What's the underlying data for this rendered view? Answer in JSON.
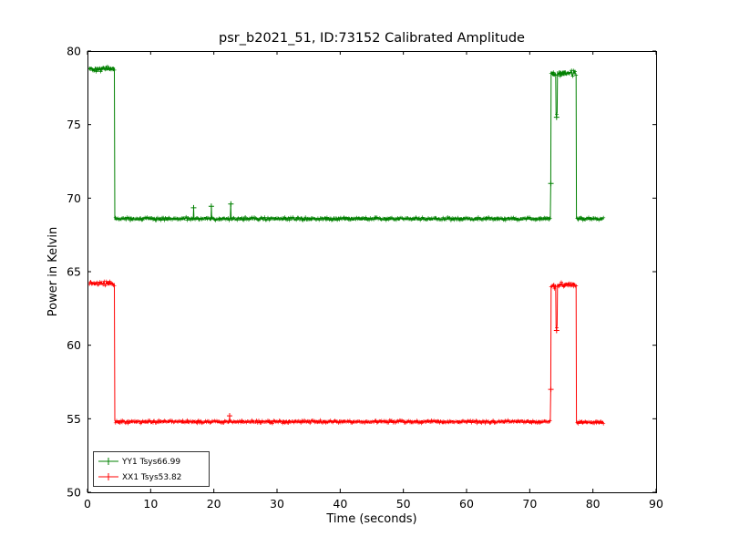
{
  "figure": {
    "title": "psr_b2021_51, ID:73152 Calibrated Amplitude",
    "xlabel": "Time (seconds)",
    "ylabel": "Power in Kelvin"
  },
  "chart_data": {
    "type": "line",
    "title": "psr_b2021_51, ID:73152 Calibrated Amplitude",
    "xlabel": "Time (seconds)",
    "ylabel": "Power in Kelvin",
    "xlim": [
      0,
      90
    ],
    "ylim": [
      50,
      80
    ],
    "x_ticks": [
      0,
      10,
      20,
      30,
      40,
      50,
      60,
      70,
      80,
      90
    ],
    "y_ticks": [
      50,
      55,
      60,
      65,
      70,
      75,
      80
    ],
    "x_tick_labels": [
      "0",
      "10",
      "20",
      "30",
      "40",
      "50",
      "60",
      "70",
      "80",
      "90"
    ],
    "y_tick_labels": [
      "50",
      "55",
      "60",
      "65",
      "70",
      "75",
      "80"
    ],
    "grid": false,
    "legend_position": "lower left",
    "legend": [
      "YY1 Tsys66.99",
      "XX1 Tsys53.82"
    ],
    "series": [
      {
        "name": "YY1 Tsys66.99",
        "color": "#008000",
        "marker": "+",
        "tsys": 66.99,
        "segments": [
          {
            "t0": 0.3,
            "t1": 4.3,
            "level": 78.8,
            "noise": 0.22
          },
          {
            "t0": 4.3,
            "t1": 73.3,
            "level": 68.6,
            "noise": 0.13
          },
          {
            "t0": 73.3,
            "t1": 74.15,
            "level": 78.4,
            "noise": 0.28
          },
          {
            "t0": 74.15,
            "t1": 74.4,
            "level": 75.8,
            "noise": 0.25
          },
          {
            "t0": 74.4,
            "t1": 77.4,
            "level": 78.5,
            "noise": 0.25
          },
          {
            "t0": 77.4,
            "t1": 81.7,
            "level": 68.6,
            "noise": 0.13
          }
        ],
        "outliers": [
          {
            "t": 16.8,
            "v": 69.35
          },
          {
            "t": 19.6,
            "v": 69.45
          },
          {
            "t": 22.7,
            "v": 69.6
          },
          {
            "t": 73.35,
            "v": 71.0
          },
          {
            "t": 74.25,
            "v": 75.5
          }
        ]
      },
      {
        "name": "XX1 Tsys53.82",
        "color": "#ff0000",
        "marker": "+",
        "tsys": 53.82,
        "segments": [
          {
            "t0": 0.3,
            "t1": 4.3,
            "level": 64.2,
            "noise": 0.18
          },
          {
            "t0": 4.3,
            "t1": 73.3,
            "level": 54.8,
            "noise": 0.12
          },
          {
            "t0": 73.3,
            "t1": 74.15,
            "level": 64.05,
            "noise": 0.22
          },
          {
            "t0": 74.15,
            "t1": 74.4,
            "level": 61.3,
            "noise": 0.22
          },
          {
            "t0": 74.4,
            "t1": 77.4,
            "level": 64.1,
            "noise": 0.22
          },
          {
            "t0": 77.4,
            "t1": 81.7,
            "level": 54.75,
            "noise": 0.12
          }
        ],
        "outliers": [
          {
            "t": 22.5,
            "v": 55.2
          },
          {
            "t": 73.35,
            "v": 57.0
          },
          {
            "t": 74.25,
            "v": 61.0
          }
        ]
      }
    ]
  }
}
